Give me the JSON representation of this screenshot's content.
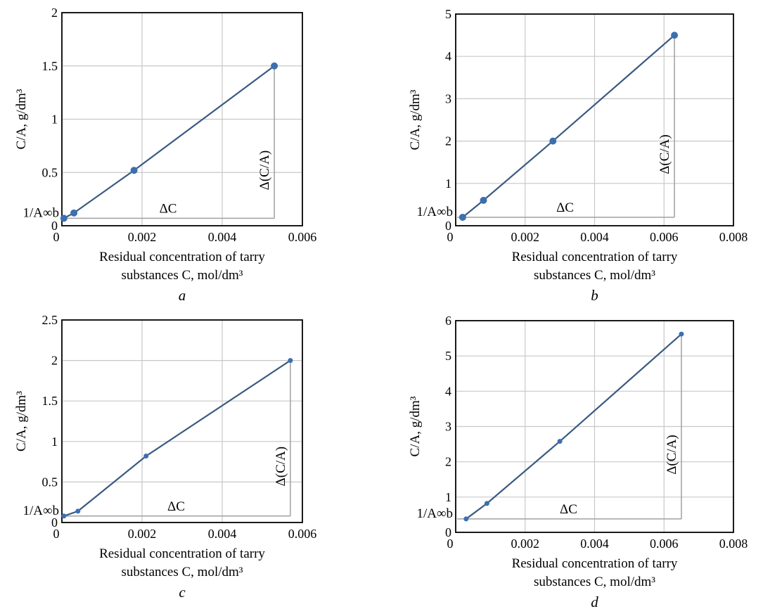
{
  "figure": {
    "charts": [
      {
        "panel_label": "a"
      },
      {
        "panel_label": "b"
      },
      {
        "panel_label": "c"
      },
      {
        "panel_label": "d"
      }
    ]
  },
  "colors": {
    "series": "#3b6fb0",
    "line": "#3a5a80",
    "grid": "#c8c8c8",
    "guide": "#a0a0a0"
  },
  "chart_data": [
    {
      "type": "line",
      "panel": "a",
      "xlabel_line1": "Residual concentration of tarry",
      "xlabel_line2": "substances C, mol/dm³",
      "ylabel": "C/A, g/dm³",
      "xlim": [
        0,
        0.006
      ],
      "ylim": [
        0,
        2
      ],
      "xticks": [
        "0",
        "0.002",
        "0.004",
        "0.006"
      ],
      "yticks": [
        "0",
        "0.5",
        "1",
        "1.5",
        "2"
      ],
      "annotations": {
        "intercept": "1/A∞b",
        "delta_x": "ΔC",
        "delta_y": "Δ(C/A)"
      },
      "series": [
        {
          "x": [
            5e-05,
            0.0003,
            0.0018,
            0.0053
          ],
          "y": [
            0.07,
            0.12,
            0.52,
            1.5
          ]
        }
      ]
    },
    {
      "type": "line",
      "panel": "b",
      "xlabel_line1": "Residual concentration of tarry",
      "xlabel_line2": "substances C, mol/dm³",
      "ylabel": "C/A, g/dm³",
      "xlim": [
        0,
        0.008
      ],
      "ylim": [
        0,
        5
      ],
      "xticks": [
        "0",
        "0.002",
        "0.004",
        "0.006",
        "0.008"
      ],
      "yticks": [
        "0",
        "1",
        "2",
        "3",
        "4",
        "5"
      ],
      "annotations": {
        "intercept": "1/A∞b",
        "delta_x": "ΔC",
        "delta_y": "Δ(C/A)"
      },
      "series": [
        {
          "x": [
            0.0002,
            0.0008,
            0.0028,
            0.0063
          ],
          "y": [
            0.2,
            0.6,
            2.0,
            4.5
          ]
        }
      ]
    },
    {
      "type": "line",
      "panel": "c",
      "xlabel_line1": "Residual concentration of tarry",
      "xlabel_line2": "substances C, mol/dm³",
      "ylabel": "C/A, g/dm³",
      "xlim": [
        0,
        0.006
      ],
      "ylim": [
        0,
        2.5
      ],
      "xticks": [
        "0",
        "0.002",
        "0.004",
        "0.006"
      ],
      "yticks": [
        "0",
        "0.5",
        "1",
        "1.5",
        "2",
        "2.5"
      ],
      "annotations": {
        "intercept": "1/A∞b",
        "delta_x": "ΔC",
        "delta_y": "Δ(C/A)"
      },
      "series": [
        {
          "x": [
            5e-05,
            0.0004,
            0.0021,
            0.0057
          ],
          "y": [
            0.08,
            0.14,
            0.82,
            2.0
          ]
        }
      ]
    },
    {
      "type": "line",
      "panel": "d",
      "xlabel_line1": "Residual concentration of tarry",
      "xlabel_line2": "substances C, mol/dm³",
      "ylabel": "C/A, g/dm³",
      "xlim": [
        0,
        0.008
      ],
      "ylim": [
        0,
        6
      ],
      "xticks": [
        "0",
        "0.002",
        "0.004",
        "0.006",
        "0.008"
      ],
      "yticks": [
        "0",
        "1",
        "2",
        "3",
        "4",
        "5",
        "6"
      ],
      "annotations": {
        "intercept": "1/A∞b",
        "delta_x": "ΔC",
        "delta_y": "Δ(C/A)"
      },
      "series": [
        {
          "x": [
            0.0003,
            0.0009,
            0.003,
            0.0065
          ],
          "y": [
            0.38,
            0.82,
            2.58,
            5.62
          ]
        }
      ]
    }
  ]
}
